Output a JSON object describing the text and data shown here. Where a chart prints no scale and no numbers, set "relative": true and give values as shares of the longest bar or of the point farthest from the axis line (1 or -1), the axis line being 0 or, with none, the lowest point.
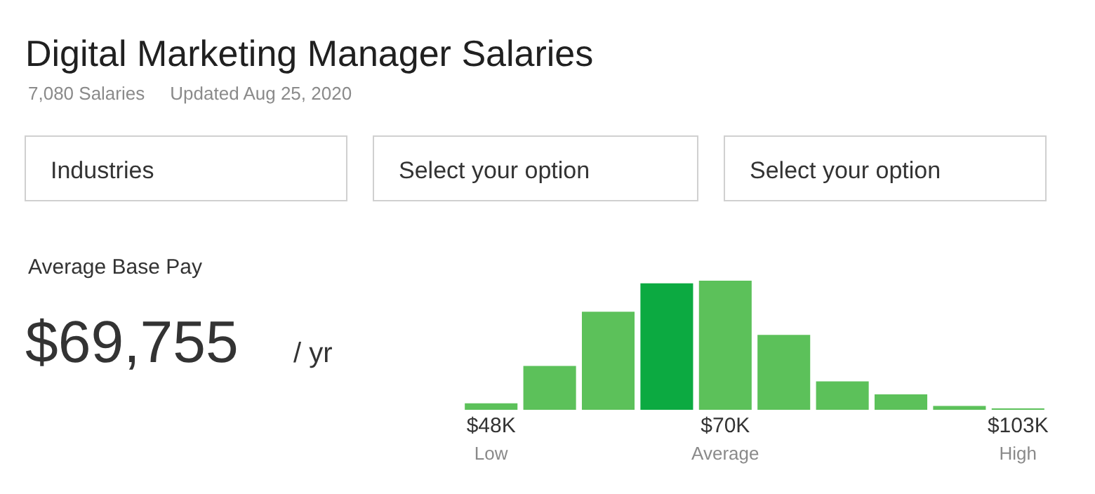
{
  "chart_data": {
    "type": "bar",
    "title": "Digital Marketing Manager Salaries",
    "subtitle": "7,080 Salaries     Updated Aug 25, 2020",
    "categories": [
      "$48K\nLow",
      null,
      null,
      null,
      "$70K\nAverage",
      null,
      null,
      null,
      null,
      "$103K\nHigh"
    ],
    "values": [
      0.05,
      0.34,
      0.76,
      0.98,
      1,
      0.58,
      0.22,
      0.12,
      0.03,
      0.01
    ],
    "colors": [
      "#5cc15a",
      "#5cc15a",
      "#5cc15a",
      "#0caa41",
      "#5cc15a",
      "#5cc15a",
      "#5cc15a",
      "#5cc15a",
      "#5cc15a",
      "#5cc15a"
    ],
    "relative": true,
    "legend": false,
    "annotations": [
      "Industries",
      "Select your option",
      "Select your option",
      "Average Base Pay",
      "$69,755",
      "/ yr"
    ]
  }
}
